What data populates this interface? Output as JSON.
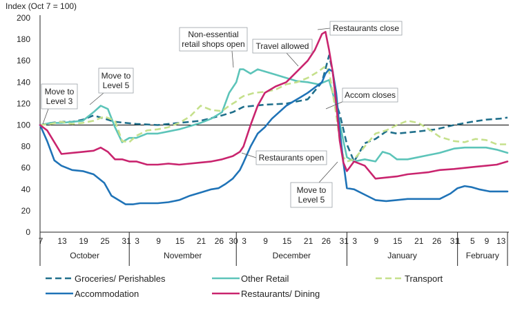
{
  "chart_data": {
    "type": "line",
    "ylabel": "Index (Oct 7 = 100)",
    "ylim": [
      0,
      200
    ],
    "yticks": [
      0,
      20,
      40,
      60,
      80,
      100,
      120,
      140,
      160,
      180,
      200
    ],
    "reference_line": 100,
    "grid": false,
    "x_tick_labels": [
      "7",
      "13",
      "19",
      "25",
      "31",
      "3",
      "9",
      "15",
      "21",
      "26",
      "30",
      "3",
      "9",
      "15",
      "21",
      "26",
      "31",
      "3",
      "9",
      "15",
      "21",
      "26",
      "31",
      "1",
      "5",
      "9",
      "13"
    ],
    "x_tick_days": [
      0,
      6,
      12,
      18,
      24,
      27,
      33,
      39,
      45,
      50,
      54,
      57,
      63,
      69,
      75,
      80,
      85,
      88,
      94,
      100,
      106,
      111,
      116,
      117,
      121,
      125,
      129
    ],
    "months": [
      {
        "label": "October",
        "start": 0,
        "end": 25
      },
      {
        "label": "November",
        "start": 25,
        "end": 55
      },
      {
        "label": "December",
        "start": 55,
        "end": 86
      },
      {
        "label": "January",
        "start": 86,
        "end": 117
      },
      {
        "label": "February",
        "start": 117,
        "end": 131
      }
    ],
    "x_range": [
      0,
      131
    ],
    "series": [
      {
        "name": "Groceries/ Perishables",
        "key": "groceries",
        "color": "#1f6f8b",
        "style": "dashed",
        "x": [
          0,
          3,
          6,
          9,
          12,
          15,
          18,
          21,
          24,
          27,
          33,
          39,
          45,
          51,
          54,
          57,
          63,
          69,
          75,
          79,
          81,
          82,
          83,
          84,
          85,
          86,
          88,
          91,
          94,
          97,
          100,
          106,
          111,
          116,
          121,
          125,
          129,
          131
        ],
        "y": [
          100,
          102,
          103,
          103,
          105,
          109,
          106,
          103,
          102,
          101,
          100,
          102,
          104,
          109,
          112,
          117,
          119,
          120,
          124,
          140,
          165,
          150,
          120,
          110,
          96,
          82,
          66,
          83,
          87,
          94,
          92,
          94,
          96,
          100,
          103,
          105,
          106,
          107
        ]
      },
      {
        "name": "Other Retail",
        "key": "other_retail",
        "color": "#5cc4b9",
        "style": "solid",
        "x": [
          0,
          3,
          6,
          9,
          12,
          15,
          17,
          19,
          21,
          23,
          25,
          27,
          30,
          33,
          36,
          39,
          42,
          45,
          48,
          51,
          53,
          55,
          56,
          57,
          59,
          61,
          63,
          66,
          69,
          72,
          75,
          78,
          81,
          83,
          85,
          86,
          88,
          91,
          94,
          96,
          98,
          100,
          103,
          106,
          109,
          112,
          116,
          119,
          122,
          125,
          128,
          131
        ],
        "y": [
          100,
          102,
          102,
          103,
          104,
          112,
          118,
          115,
          98,
          84,
          88,
          88,
          92,
          92,
          94,
          96,
          99,
          102,
          106,
          112,
          130,
          140,
          152,
          152,
          148,
          152,
          150,
          147,
          144,
          141,
          140,
          138,
          142,
          118,
          85,
          70,
          66,
          68,
          66,
          75,
          73,
          68,
          68,
          70,
          72,
          74,
          78,
          79,
          79,
          79,
          77,
          74
        ]
      },
      {
        "name": "Transport",
        "key": "transport",
        "color": "#c5e08c",
        "style": "dashed",
        "x": [
          0,
          3,
          6,
          9,
          12,
          15,
          18,
          21,
          23,
          25,
          27,
          30,
          33,
          36,
          39,
          42,
          45,
          48,
          51,
          53,
          55,
          56,
          57,
          60,
          63,
          66,
          69,
          72,
          75,
          78,
          80,
          81,
          82,
          83,
          84,
          85,
          86,
          88,
          91,
          94,
          97,
          100,
          103,
          106,
          109,
          112,
          116,
          119,
          122,
          125,
          128,
          131
        ],
        "y": [
          100,
          101,
          103,
          101,
          102,
          104,
          108,
          104,
          85,
          84,
          90,
          95,
          96,
          98,
          102,
          108,
          118,
          114,
          113,
          118,
          122,
          125,
          127,
          130,
          131,
          133,
          138,
          140,
          144,
          150,
          155,
          150,
          130,
          110,
          85,
          70,
          66,
          68,
          80,
          92,
          95,
          100,
          104,
          102,
          96,
          89,
          85,
          84,
          87,
          86,
          82,
          82
        ]
      },
      {
        "name": "Accommodation",
        "key": "accommodation",
        "color": "#1f73b7",
        "style": "solid",
        "x": [
          0,
          2,
          4,
          6,
          9,
          12,
          15,
          18,
          20,
          22,
          24,
          26,
          28,
          30,
          33,
          36,
          39,
          42,
          45,
          48,
          50,
          52,
          54,
          56,
          57,
          59,
          61,
          63,
          65,
          67,
          69,
          71,
          73,
          75,
          77,
          79,
          80,
          81,
          82,
          83,
          84,
          85,
          86,
          88,
          91,
          94,
          97,
          100,
          103,
          106,
          109,
          112,
          115,
          117,
          119,
          121,
          123,
          126,
          129,
          131
        ],
        "y": [
          100,
          85,
          67,
          62,
          58,
          57,
          54,
          46,
          34,
          30,
          26,
          26,
          27,
          27,
          27,
          28,
          30,
          34,
          37,
          40,
          41,
          45,
          50,
          58,
          65,
          80,
          92,
          98,
          106,
          112,
          118,
          122,
          126,
          130,
          135,
          140,
          148,
          152,
          150,
          130,
          95,
          65,
          41,
          40,
          35,
          30,
          29,
          30,
          31,
          31,
          31,
          31,
          36,
          41,
          43,
          42,
          40,
          38,
          38,
          38
        ]
      },
      {
        "name": "Restaurants/ Dining",
        "key": "restaurants",
        "color": "#c9246e",
        "style": "solid",
        "x": [
          0,
          2,
          4,
          6,
          9,
          12,
          15,
          17,
          19,
          21,
          23,
          25,
          27,
          30,
          33,
          36,
          39,
          42,
          45,
          48,
          51,
          54,
          56,
          57,
          59,
          61,
          63,
          66,
          69,
          72,
          75,
          77,
          79,
          80,
          81,
          82,
          83,
          84,
          85,
          86,
          88,
          91,
          94,
          97,
          100,
          103,
          106,
          109,
          112,
          116,
          119,
          122,
          125,
          128,
          131
        ],
        "y": [
          100,
          95,
          84,
          73,
          74,
          75,
          76,
          79,
          75,
          68,
          68,
          66,
          66,
          63,
          63,
          64,
          63,
          64,
          65,
          66,
          68,
          71,
          75,
          80,
          100,
          118,
          130,
          136,
          140,
          150,
          160,
          170,
          185,
          187,
          170,
          150,
          120,
          85,
          65,
          57,
          66,
          62,
          50,
          51,
          52,
          54,
          55,
          56,
          58,
          59,
          60,
          61,
          62,
          63,
          66
        ]
      }
    ]
  },
  "annotations": {
    "move_level3": [
      "Move to",
      "Level 3"
    ],
    "move_level5_oct": [
      "Move to",
      "Level 5"
    ],
    "nonessential": [
      "Non-essential",
      "retail shops open"
    ],
    "travel_allowed": "Travel allowed",
    "restaurants_close": "Restaurants close",
    "accom_closes": "Accom closes",
    "restaurants_open": "Restaurants open",
    "move_level5_dec": [
      "Move to",
      "Level 5"
    ]
  },
  "colors": {
    "axis": "#222222",
    "text": "#222222",
    "callout_border": "#9aa0a6",
    "leader": "#555555"
  }
}
